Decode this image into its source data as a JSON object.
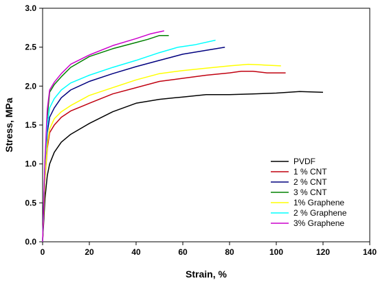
{
  "chart_data": {
    "type": "line",
    "title": "",
    "xlabel": "Strain, %",
    "ylabel": "Stress, MPa",
    "xlim": [
      0,
      140
    ],
    "ylim": [
      0,
      3.0
    ],
    "xticks": [
      "0",
      "20",
      "40",
      "60",
      "80",
      "100",
      "120",
      "140"
    ],
    "yticks": [
      "0.0",
      "0.5",
      "1.0",
      "1.5",
      "2.0",
      "2.5",
      "3.0"
    ],
    "grid": false,
    "legend_position": "bottom-right",
    "series": [
      {
        "name": "PVDF",
        "color": "#000000",
        "points": [
          [
            0,
            0
          ],
          [
            1,
            0.55
          ],
          [
            2,
            0.85
          ],
          [
            3,
            1.0
          ],
          [
            5,
            1.15
          ],
          [
            8,
            1.28
          ],
          [
            12,
            1.38
          ],
          [
            20,
            1.52
          ],
          [
            30,
            1.67
          ],
          [
            40,
            1.78
          ],
          [
            50,
            1.83
          ],
          [
            60,
            1.86
          ],
          [
            70,
            1.89
          ],
          [
            80,
            1.89
          ],
          [
            90,
            1.9
          ],
          [
            100,
            1.91
          ],
          [
            110,
            1.93
          ],
          [
            120,
            1.92
          ]
        ]
      },
      {
        "name": "1 % CNT",
        "color": "#c0000f",
        "points": [
          [
            0,
            0
          ],
          [
            1,
            0.8
          ],
          [
            2,
            1.2
          ],
          [
            3,
            1.4
          ],
          [
            5,
            1.5
          ],
          [
            8,
            1.6
          ],
          [
            12,
            1.68
          ],
          [
            20,
            1.78
          ],
          [
            30,
            1.9
          ],
          [
            40,
            1.98
          ],
          [
            50,
            2.06
          ],
          [
            60,
            2.1
          ],
          [
            70,
            2.14
          ],
          [
            80,
            2.17
          ],
          [
            85,
            2.19
          ],
          [
            90,
            2.19
          ],
          [
            96,
            2.17
          ],
          [
            104,
            2.17
          ]
        ]
      },
      {
        "name": "2 % CNT",
        "color": "#00007f",
        "points": [
          [
            0,
            0
          ],
          [
            1,
            0.9
          ],
          [
            2,
            1.4
          ],
          [
            3,
            1.6
          ],
          [
            5,
            1.72
          ],
          [
            8,
            1.85
          ],
          [
            12,
            1.95
          ],
          [
            20,
            2.06
          ],
          [
            30,
            2.16
          ],
          [
            40,
            2.25
          ],
          [
            50,
            2.33
          ],
          [
            60,
            2.41
          ],
          [
            70,
            2.46
          ],
          [
            78,
            2.5
          ]
        ]
      },
      {
        "name": "3 % CNT",
        "color": "#008000",
        "points": [
          [
            0,
            0
          ],
          [
            1,
            1.0
          ],
          [
            2,
            1.6
          ],
          [
            3,
            1.92
          ],
          [
            5,
            2.02
          ],
          [
            8,
            2.12
          ],
          [
            12,
            2.24
          ],
          [
            20,
            2.38
          ],
          [
            30,
            2.48
          ],
          [
            40,
            2.56
          ],
          [
            45,
            2.6
          ],
          [
            50,
            2.65
          ],
          [
            54,
            2.65
          ]
        ]
      },
      {
        "name": "1% Graphene",
        "color": "#ffff00",
        "points": [
          [
            0,
            0
          ],
          [
            1,
            0.8
          ],
          [
            2,
            1.25
          ],
          [
            3,
            1.45
          ],
          [
            5,
            1.58
          ],
          [
            8,
            1.67
          ],
          [
            12,
            1.75
          ],
          [
            20,
            1.88
          ],
          [
            30,
            1.98
          ],
          [
            40,
            2.08
          ],
          [
            50,
            2.16
          ],
          [
            60,
            2.2
          ],
          [
            70,
            2.23
          ],
          [
            80,
            2.26
          ],
          [
            88,
            2.28
          ],
          [
            95,
            2.27
          ],
          [
            102,
            2.26
          ]
        ]
      },
      {
        "name": "2 % Graphene",
        "color": "#00ffff",
        "points": [
          [
            0,
            0
          ],
          [
            1,
            1.0
          ],
          [
            2,
            1.5
          ],
          [
            3,
            1.72
          ],
          [
            5,
            1.84
          ],
          [
            8,
            1.95
          ],
          [
            12,
            2.04
          ],
          [
            20,
            2.14
          ],
          [
            30,
            2.24
          ],
          [
            40,
            2.33
          ],
          [
            50,
            2.43
          ],
          [
            58,
            2.5
          ],
          [
            65,
            2.53
          ],
          [
            74,
            2.59
          ]
        ]
      },
      {
        "name": "3% Graphene",
        "color": "#cc00cc",
        "points": [
          [
            0,
            0
          ],
          [
            1,
            1.05
          ],
          [
            2,
            1.7
          ],
          [
            3,
            1.95
          ],
          [
            5,
            2.05
          ],
          [
            8,
            2.16
          ],
          [
            12,
            2.28
          ],
          [
            20,
            2.4
          ],
          [
            30,
            2.52
          ],
          [
            40,
            2.61
          ],
          [
            46,
            2.67
          ],
          [
            52,
            2.71
          ]
        ]
      }
    ]
  }
}
